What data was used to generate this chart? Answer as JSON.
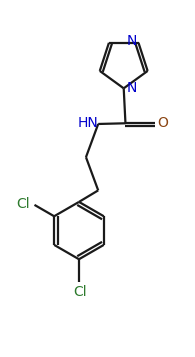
{
  "background_color": "#ffffff",
  "bond_color": "#1a1a1a",
  "N_color": "#0000cc",
  "O_color": "#8B4513",
  "Cl_color": "#2d7a2d",
  "figsize": [
    1.95,
    3.57
  ],
  "dpi": 100,
  "xlim": [
    -0.5,
    5.0
  ],
  "ylim": [
    -4.8,
    4.2
  ]
}
